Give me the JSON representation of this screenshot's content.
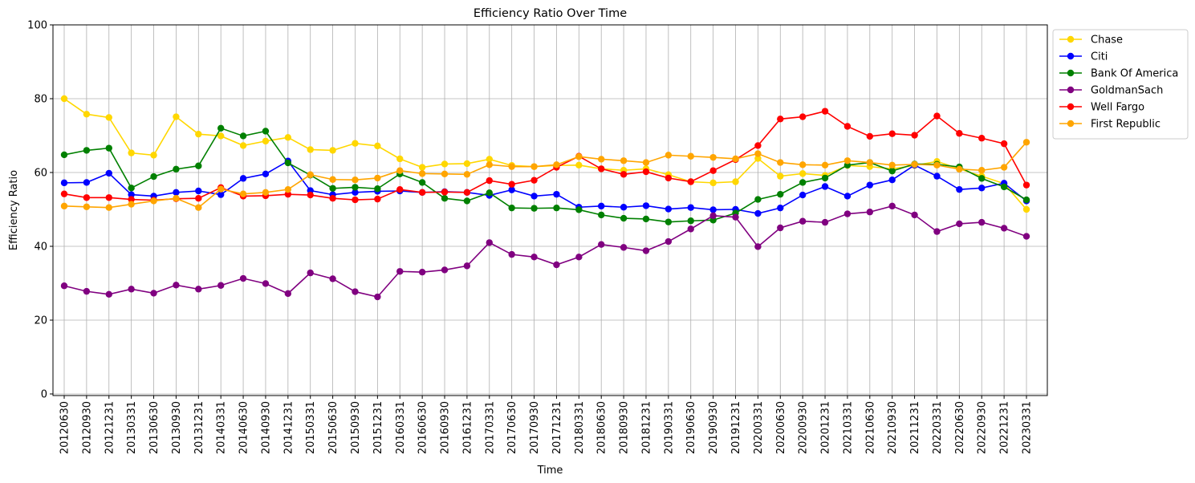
{
  "chart_data": {
    "type": "line",
    "title": "Efficiency Ratio Over Time",
    "xlabel": "Time",
    "ylabel": "Efficiency Ratio",
    "ylim": [
      0,
      100
    ],
    "yticks": [
      0,
      20,
      40,
      60,
      80,
      100
    ],
    "grid": true,
    "legend_position": "outside-top-right",
    "x": [
      "20120630",
      "20120930",
      "20121231",
      "20130331",
      "20130630",
      "20130930",
      "20131231",
      "20140331",
      "20140630",
      "20140930",
      "20141231",
      "20150331",
      "20150630",
      "20150930",
      "20151231",
      "20160331",
      "20160630",
      "20160930",
      "20161231",
      "20170331",
      "20170630",
      "20170930",
      "20171231",
      "20180331",
      "20180630",
      "20180930",
      "20181231",
      "20190331",
      "20190630",
      "20190930",
      "20191231",
      "20200331",
      "20200630",
      "20200930",
      "20201231",
      "20210331",
      "20210630",
      "20210930",
      "20211231",
      "20220331",
      "20220630",
      "20220930",
      "20221231",
      "20230331"
    ],
    "series": [
      {
        "name": "Chase",
        "color": "#FFD700",
        "values": [
          80.0,
          75.8,
          74.9,
          65.3,
          64.7,
          75.1,
          70.4,
          69.9,
          67.3,
          68.5,
          69.5,
          66.2,
          66.0,
          67.9,
          67.2,
          63.7,
          61.4,
          62.3,
          62.4,
          63.6,
          61.9,
          61.6,
          61.9,
          62.0,
          61.0,
          60.6,
          61.0,
          59.4,
          57.5,
          57.2,
          57.5,
          63.8,
          59.0,
          59.7,
          59.2,
          61.9,
          61.6,
          61.0,
          61.9,
          63.0,
          61.0,
          59.0,
          57.0,
          50.0
        ]
      },
      {
        "name": "Citi",
        "color": "#0000FF",
        "values": [
          57.2,
          57.3,
          59.8,
          54.0,
          53.6,
          54.6,
          55.0,
          54.0,
          58.4,
          59.6,
          63.1,
          55.1,
          54.0,
          54.6,
          54.9,
          55.0,
          54.6,
          54.8,
          54.6,
          53.8,
          55.3,
          53.6,
          54.1,
          50.6,
          50.9,
          50.6,
          51.0,
          50.1,
          50.5,
          49.9,
          50.0,
          48.9,
          50.4,
          53.9,
          56.2,
          53.6,
          56.6,
          58.0,
          62.0,
          59.0,
          55.4,
          55.8,
          57.1,
          52.3
        ]
      },
      {
        "name": "Bank Of America",
        "color": "#008000",
        "values": [
          64.8,
          66.0,
          66.6,
          55.8,
          58.9,
          60.9,
          61.8,
          72.0,
          69.9,
          71.2,
          62.6,
          59.3,
          55.7,
          56.0,
          55.6,
          59.6,
          57.3,
          53.0,
          52.3,
          54.5,
          50.4,
          50.3,
          50.4,
          49.9,
          48.5,
          47.6,
          47.4,
          46.6,
          46.9,
          47.1,
          49.0,
          52.7,
          54.1,
          57.3,
          58.5,
          62.0,
          62.7,
          60.4,
          62.3,
          62.2,
          61.5,
          58.4,
          56.1,
          52.6
        ]
      },
      {
        "name": "GoldmanSach",
        "color": "#800080",
        "values": [
          29.3,
          27.8,
          27.0,
          28.4,
          27.3,
          29.5,
          28.4,
          29.4,
          31.3,
          29.9,
          27.2,
          32.8,
          31.2,
          27.7,
          26.3,
          33.2,
          33.0,
          33.6,
          34.7,
          41.0,
          37.8,
          37.1,
          35.0,
          37.1,
          40.5,
          39.7,
          38.8,
          41.3,
          44.7,
          48.3,
          47.9,
          39.9,
          45.0,
          46.8,
          46.5,
          48.8,
          49.3,
          50.9,
          48.5,
          44.0,
          46.1,
          46.5,
          44.9,
          42.7
        ]
      },
      {
        "name": "Well Fargo",
        "color": "#FF0000",
        "values": [
          54.2,
          53.2,
          53.2,
          52.7,
          52.5,
          52.9,
          53.0,
          55.9,
          53.6,
          53.7,
          54.1,
          53.9,
          53.0,
          52.6,
          52.8,
          55.4,
          54.6,
          54.7,
          54.6,
          57.8,
          56.8,
          57.9,
          61.4,
          64.4,
          61.0,
          59.5,
          60.2,
          58.5,
          57.5,
          60.5,
          63.5,
          67.3,
          74.5,
          75.1,
          76.6,
          72.5,
          69.8,
          70.5,
          70.1,
          75.3,
          70.6,
          69.3,
          67.8,
          56.6
        ]
      },
      {
        "name": "First Republic",
        "color": "#FFA500",
        "values": [
          50.9,
          50.7,
          50.5,
          51.4,
          52.3,
          53.0,
          50.5,
          55.5,
          54.2,
          54.6,
          55.4,
          59.4,
          58.1,
          58.0,
          58.5,
          60.5,
          59.7,
          59.6,
          59.5,
          62.1,
          61.6,
          61.6,
          62.1,
          64.3,
          63.6,
          63.2,
          62.7,
          64.7,
          64.4,
          64.1,
          63.7,
          65.1,
          62.7,
          62.1,
          62.0,
          63.2,
          62.7,
          62.0,
          62.2,
          62.0,
          60.9,
          60.6,
          61.4,
          68.2
        ]
      }
    ]
  }
}
